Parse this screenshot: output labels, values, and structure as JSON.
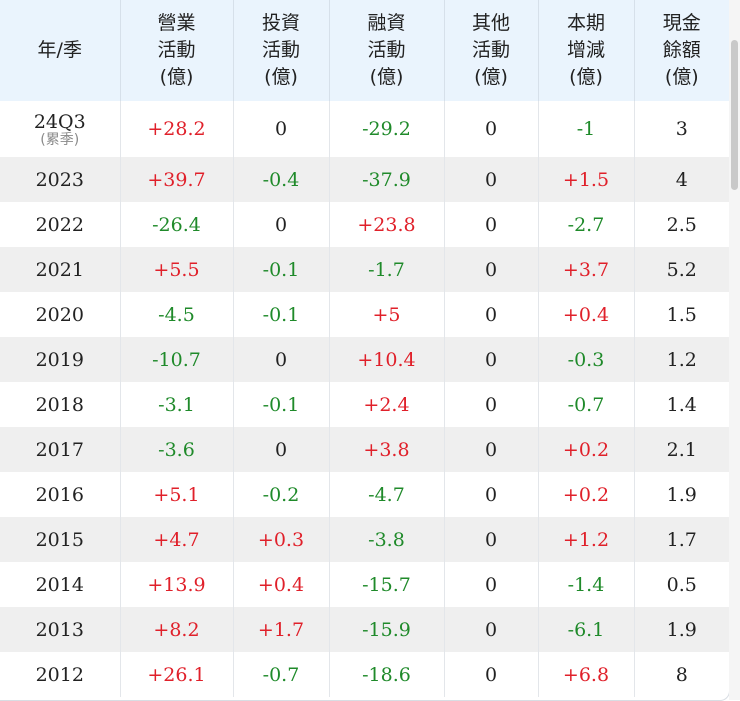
{
  "headers": [
    {
      "lines": [
        "年/季"
      ]
    },
    {
      "lines": [
        "營業",
        "活動",
        "(億)"
      ]
    },
    {
      "lines": [
        "投資",
        "活動",
        "(億)"
      ]
    },
    {
      "lines": [
        "融資",
        "活動",
        "(億)"
      ]
    },
    {
      "lines": [
        "其他",
        "活動",
        "(億)"
      ]
    },
    {
      "lines": [
        "本期",
        "增減",
        "(億)"
      ]
    },
    {
      "lines": [
        "現金",
        "餘額",
        "(億)"
      ]
    }
  ],
  "rows": [
    {
      "year": "24Q3",
      "note": "(累季)",
      "cells": [
        "+28.2",
        "0",
        "-29.2",
        "0",
        "-1",
        "3"
      ]
    },
    {
      "year": "2023",
      "note": "",
      "cells": [
        "+39.7",
        "-0.4",
        "-37.9",
        "0",
        "+1.5",
        "4"
      ]
    },
    {
      "year": "2022",
      "note": "",
      "cells": [
        "-26.4",
        "0",
        "+23.8",
        "0",
        "-2.7",
        "2.5"
      ]
    },
    {
      "year": "2021",
      "note": "",
      "cells": [
        "+5.5",
        "-0.1",
        "-1.7",
        "0",
        "+3.7",
        "5.2"
      ]
    },
    {
      "year": "2020",
      "note": "",
      "cells": [
        "-4.5",
        "-0.1",
        "+5",
        "0",
        "+0.4",
        "1.5"
      ]
    },
    {
      "year": "2019",
      "note": "",
      "cells": [
        "-10.7",
        "0",
        "+10.4",
        "0",
        "-0.3",
        "1.2"
      ]
    },
    {
      "year": "2018",
      "note": "",
      "cells": [
        "-3.1",
        "-0.1",
        "+2.4",
        "0",
        "-0.7",
        "1.4"
      ]
    },
    {
      "year": "2017",
      "note": "",
      "cells": [
        "-3.6",
        "0",
        "+3.8",
        "0",
        "+0.2",
        "2.1"
      ]
    },
    {
      "year": "2016",
      "note": "",
      "cells": [
        "+5.1",
        "-0.2",
        "-4.7",
        "0",
        "+0.2",
        "1.9"
      ]
    },
    {
      "year": "2015",
      "note": "",
      "cells": [
        "+4.7",
        "+0.3",
        "-3.8",
        "0",
        "+1.2",
        "1.7"
      ]
    },
    {
      "year": "2014",
      "note": "",
      "cells": [
        "+13.9",
        "+0.4",
        "-15.7",
        "0",
        "-1.4",
        "0.5"
      ]
    },
    {
      "year": "2013",
      "note": "",
      "cells": [
        "+8.2",
        "+1.7",
        "-15.9",
        "0",
        "-6.1",
        "1.9"
      ]
    },
    {
      "year": "2012",
      "note": "",
      "cells": [
        "+26.1",
        "-0.7",
        "-18.6",
        "0",
        "+6.8",
        "8"
      ]
    }
  ],
  "colors": {
    "positive": "#e0202a",
    "negative": "#1f8a2a",
    "header_bg": "#eaf4fd",
    "stripe_bg": "#efefef"
  }
}
